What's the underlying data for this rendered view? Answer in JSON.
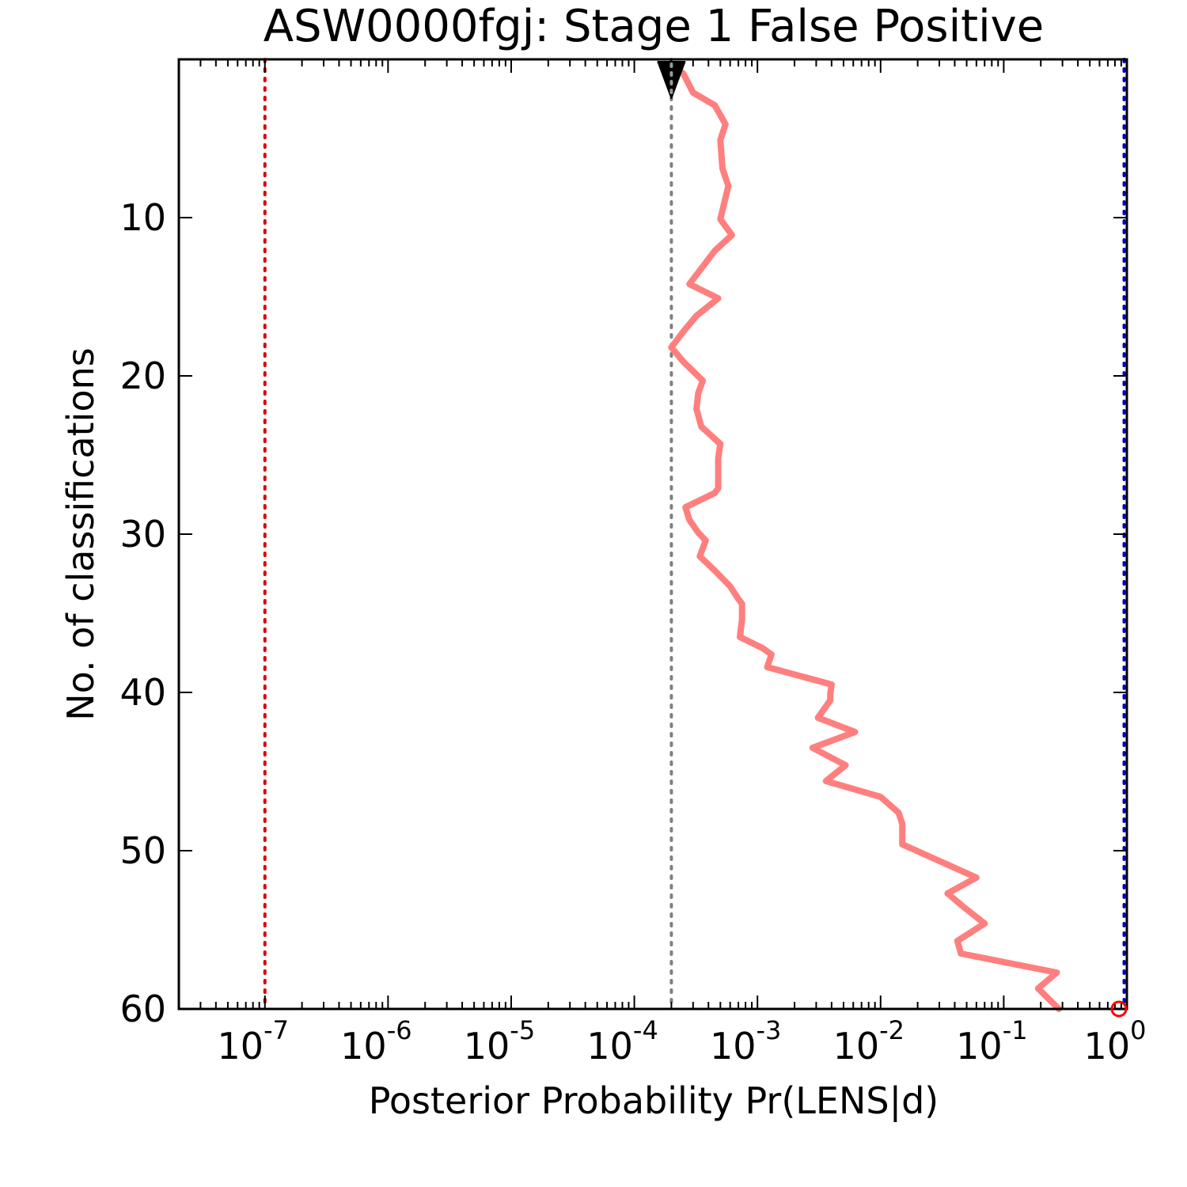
{
  "chart_data": {
    "type": "line",
    "title": "ASW0000fgj: Stage 1 False Positive",
    "xlabel": "Posterior Probability Pr(LENS|d)",
    "ylabel": "No. of classifications",
    "x_scale": "log",
    "y_inverted": true,
    "xlim": [
      2e-08,
      1
    ],
    "ylim": [
      0,
      60
    ],
    "x_tick_labels": [
      {
        "base": "10",
        "exp": "-7",
        "value": 1e-07
      },
      {
        "base": "10",
        "exp": "-6",
        "value": 1e-06
      },
      {
        "base": "10",
        "exp": "-5",
        "value": 1e-05
      },
      {
        "base": "10",
        "exp": "-4",
        "value": 0.0001
      },
      {
        "base": "10",
        "exp": "-3",
        "value": 0.001
      },
      {
        "base": "10",
        "exp": "-2",
        "value": 0.01
      },
      {
        "base": "10",
        "exp": "-1",
        "value": 0.1
      },
      {
        "base": "10",
        "exp": "0",
        "value": 1
      }
    ],
    "y_tick_labels": [
      "10",
      "20",
      "30",
      "40",
      "50",
      "60"
    ],
    "y_tick_values": [
      10,
      20,
      30,
      40,
      50,
      60
    ],
    "reference_lines": [
      {
        "x": 1e-07,
        "color": "#dd0000",
        "style": "dotted"
      },
      {
        "x": 0.0002,
        "color": "#808080",
        "style": "dotted"
      },
      {
        "x": 0.95,
        "color": "#0000cc",
        "style": "dotted"
      }
    ],
    "start_marker": {
      "x": 0.0002,
      "y": 0,
      "color": "#000000",
      "shape": "triangle-down"
    },
    "end_marker": {
      "x": 1,
      "y": 60,
      "color": "#ff0000",
      "shape": "circle-open"
    },
    "series": [
      {
        "color": "#ff7f7f",
        "points": [
          [
            0.0002,
            0.3
          ],
          [
            0.00025,
            0.9
          ],
          [
            0.0003,
            2.1
          ],
          [
            0.00045,
            2.9
          ],
          [
            0.00055,
            4.1
          ],
          [
            0.0005,
            5.1
          ],
          [
            0.00052,
            6.9
          ],
          [
            0.00058,
            8.0
          ],
          [
            0.0005,
            10.1
          ],
          [
            0.00062,
            11.1
          ],
          [
            0.00045,
            12.1
          ],
          [
            0.00028,
            14.2
          ],
          [
            0.00048,
            15.1
          ],
          [
            0.00032,
            16.2
          ],
          [
            0.00025,
            17.2
          ],
          [
            0.0002,
            18.2
          ],
          [
            0.00025,
            19.1
          ],
          [
            0.00036,
            20.3
          ],
          [
            0.00033,
            21.1
          ],
          [
            0.00032,
            22.1
          ],
          [
            0.00035,
            23.2
          ],
          [
            0.0005,
            24.3
          ],
          [
            0.00048,
            25.2
          ],
          [
            0.00048,
            26.1
          ],
          [
            0.00048,
            27.1
          ],
          [
            0.00045,
            27.4
          ],
          [
            0.00026,
            28.3
          ],
          [
            0.00028,
            29.1
          ],
          [
            0.00033,
            29.9
          ],
          [
            0.00038,
            30.4
          ],
          [
            0.00034,
            31.4
          ],
          [
            0.00045,
            32.3
          ],
          [
            0.0006,
            33.3
          ],
          [
            0.0007,
            34.1
          ],
          [
            0.00075,
            34.4
          ],
          [
            0.00075,
            35.4
          ],
          [
            0.00072,
            36.5
          ],
          [
            0.0011,
            37.2
          ],
          [
            0.0013,
            37.6
          ],
          [
            0.0012,
            38.4
          ],
          [
            0.004,
            39.5
          ],
          [
            0.0039,
            40.1
          ],
          [
            0.0039,
            40.5
          ],
          [
            0.0031,
            41.6
          ],
          [
            0.0062,
            42.5
          ],
          [
            0.0028,
            43.5
          ],
          [
            0.0052,
            44.6
          ],
          [
            0.0036,
            45.6
          ],
          [
            0.01,
            46.6
          ],
          [
            0.014,
            47.6
          ],
          [
            0.015,
            48.3
          ],
          [
            0.015,
            49.6
          ],
          [
            0.06,
            51.7
          ],
          [
            0.035,
            52.7
          ],
          [
            0.048,
            53.6
          ],
          [
            0.07,
            54.6
          ],
          [
            0.042,
            55.7
          ],
          [
            0.045,
            56.5
          ],
          [
            0.27,
            57.7
          ],
          [
            0.19,
            58.7
          ],
          [
            0.28,
            60.0
          ]
        ]
      }
    ]
  }
}
